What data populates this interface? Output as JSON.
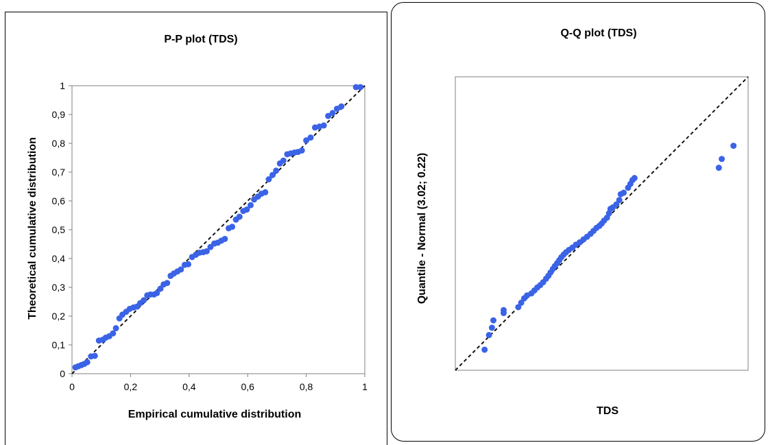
{
  "colors": {
    "point": "#3b63e6",
    "reference_line": "#111111",
    "frame": "#000000",
    "plot_border": "#7f7f7f"
  },
  "chart_data": [
    {
      "type": "scatter",
      "title": "P-P plot (TDS)",
      "xlabel": "Empirical cumulative distribution",
      "ylabel": "Theoretical cumulative distribution",
      "xlim": [
        0,
        1
      ],
      "ylim": [
        0,
        1
      ],
      "grid": false,
      "x_ticks": [
        0,
        0.2,
        0.4,
        0.6,
        0.8,
        1
      ],
      "x_tick_labels": [
        "0",
        "0,2",
        "0,4",
        "0,6",
        "0,8",
        "1"
      ],
      "y_ticks": [
        0,
        0.1,
        0.2,
        0.3,
        0.4,
        0.5,
        0.6,
        0.7,
        0.8,
        0.9,
        1
      ],
      "y_tick_labels": [
        "0",
        "0,1",
        "0,2",
        "0,3",
        "0,4",
        "0,5",
        "0,6",
        "0,7",
        "0,8",
        "0,9",
        "1"
      ],
      "reference_line": [
        [
          0,
          0
        ],
        [
          1,
          1
        ]
      ],
      "points": [
        [
          0.012,
          0.022
        ],
        [
          0.022,
          0.026
        ],
        [
          0.032,
          0.03
        ],
        [
          0.042,
          0.034
        ],
        [
          0.052,
          0.04
        ],
        [
          0.065,
          0.06
        ],
        [
          0.078,
          0.062
        ],
        [
          0.092,
          0.115
        ],
        [
          0.105,
          0.118
        ],
        [
          0.115,
          0.125
        ],
        [
          0.127,
          0.13
        ],
        [
          0.14,
          0.14
        ],
        [
          0.15,
          0.158
        ],
        [
          0.162,
          0.192
        ],
        [
          0.172,
          0.205
        ],
        [
          0.185,
          0.215
        ],
        [
          0.197,
          0.225
        ],
        [
          0.21,
          0.23
        ],
        [
          0.222,
          0.233
        ],
        [
          0.233,
          0.245
        ],
        [
          0.245,
          0.255
        ],
        [
          0.257,
          0.272
        ],
        [
          0.268,
          0.275
        ],
        [
          0.28,
          0.275
        ],
        [
          0.29,
          0.28
        ],
        [
          0.302,
          0.295
        ],
        [
          0.313,
          0.31
        ],
        [
          0.325,
          0.315
        ],
        [
          0.337,
          0.34
        ],
        [
          0.348,
          0.348
        ],
        [
          0.36,
          0.355
        ],
        [
          0.372,
          0.362
        ],
        [
          0.385,
          0.378
        ],
        [
          0.397,
          0.38
        ],
        [
          0.41,
          0.405
        ],
        [
          0.423,
          0.413
        ],
        [
          0.435,
          0.42
        ],
        [
          0.448,
          0.422
        ],
        [
          0.46,
          0.425
        ],
        [
          0.473,
          0.44
        ],
        [
          0.486,
          0.452
        ],
        [
          0.498,
          0.455
        ],
        [
          0.51,
          0.462
        ],
        [
          0.522,
          0.468
        ],
        [
          0.535,
          0.505
        ],
        [
          0.547,
          0.51
        ],
        [
          0.56,
          0.535
        ],
        [
          0.572,
          0.545
        ],
        [
          0.585,
          0.565
        ],
        [
          0.597,
          0.57
        ],
        [
          0.61,
          0.585
        ],
        [
          0.622,
          0.605
        ],
        [
          0.635,
          0.615
        ],
        [
          0.647,
          0.625
        ],
        [
          0.66,
          0.63
        ],
        [
          0.672,
          0.675
        ],
        [
          0.685,
          0.69
        ],
        [
          0.697,
          0.705
        ],
        [
          0.71,
          0.73
        ],
        [
          0.722,
          0.74
        ],
        [
          0.735,
          0.762
        ],
        [
          0.747,
          0.765
        ],
        [
          0.76,
          0.768
        ],
        [
          0.772,
          0.77
        ],
        [
          0.785,
          0.775
        ],
        [
          0.8,
          0.81
        ],
        [
          0.815,
          0.82
        ],
        [
          0.83,
          0.855
        ],
        [
          0.845,
          0.858
        ],
        [
          0.86,
          0.862
        ],
        [
          0.875,
          0.895
        ],
        [
          0.89,
          0.905
        ],
        [
          0.905,
          0.92
        ],
        [
          0.92,
          0.928
        ],
        [
          0.97,
          0.995
        ],
        [
          0.985,
          0.995
        ]
      ]
    },
    {
      "type": "scatter",
      "title": "Q-Q plot (TDS)",
      "xlabel": "TDS",
      "ylabel": "Quantile - Normal (3.02; 0.22)",
      "x_ticks_shown": false,
      "y_ticks_shown": false,
      "grid": false,
      "reference_line": [
        [
          0,
          0
        ],
        [
          1,
          1
        ]
      ],
      "points": [
        [
          0.1,
          0.07
        ],
        [
          0.115,
          0.12
        ],
        [
          0.125,
          0.145
        ],
        [
          0.13,
          0.17
        ],
        [
          0.165,
          0.195
        ],
        [
          0.165,
          0.205
        ],
        [
          0.215,
          0.215
        ],
        [
          0.225,
          0.23
        ],
        [
          0.235,
          0.245
        ],
        [
          0.245,
          0.255
        ],
        [
          0.26,
          0.262
        ],
        [
          0.27,
          0.272
        ],
        [
          0.28,
          0.282
        ],
        [
          0.29,
          0.29
        ],
        [
          0.3,
          0.3
        ],
        [
          0.31,
          0.312
        ],
        [
          0.318,
          0.322
        ],
        [
          0.325,
          0.333
        ],
        [
          0.333,
          0.345
        ],
        [
          0.34,
          0.355
        ],
        [
          0.348,
          0.365
        ],
        [
          0.355,
          0.375
        ],
        [
          0.362,
          0.385
        ],
        [
          0.37,
          0.394
        ],
        [
          0.378,
          0.402
        ],
        [
          0.388,
          0.41
        ],
        [
          0.4,
          0.418
        ],
        [
          0.412,
          0.428
        ],
        [
          0.425,
          0.436
        ],
        [
          0.438,
          0.446
        ],
        [
          0.45,
          0.455
        ],
        [
          0.462,
          0.465
        ],
        [
          0.472,
          0.475
        ],
        [
          0.482,
          0.485
        ],
        [
          0.492,
          0.492
        ],
        [
          0.5,
          0.5
        ],
        [
          0.508,
          0.51
        ],
        [
          0.518,
          0.52
        ],
        [
          0.525,
          0.535
        ],
        [
          0.53,
          0.55
        ],
        [
          0.538,
          0.555
        ],
        [
          0.55,
          0.565
        ],
        [
          0.56,
          0.58
        ],
        [
          0.565,
          0.6
        ],
        [
          0.575,
          0.605
        ],
        [
          0.59,
          0.622
        ],
        [
          0.598,
          0.635
        ],
        [
          0.605,
          0.648
        ],
        [
          0.612,
          0.655
        ],
        [
          0.9,
          0.69
        ],
        [
          0.91,
          0.72
        ],
        [
          0.95,
          0.765
        ]
      ]
    }
  ]
}
